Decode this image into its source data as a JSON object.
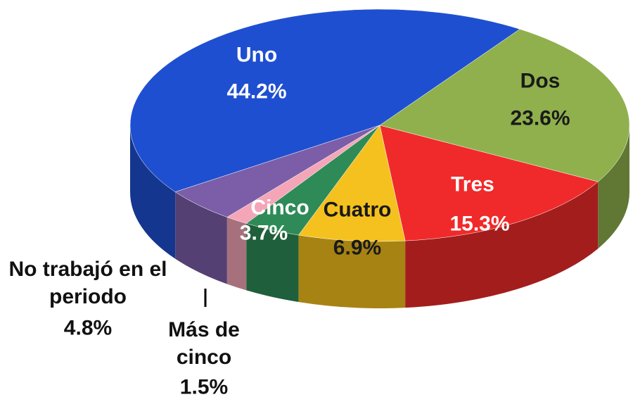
{
  "chart_data": {
    "type": "pie",
    "categories": [
      "Uno",
      "Dos",
      "Tres",
      "Cuatro",
      "Cinco",
      "Más de cinco",
      "No trabajó en el periodo"
    ],
    "values": [
      44.2,
      23.6,
      15.3,
      6.9,
      3.7,
      1.5,
      4.8
    ],
    "value_labels": [
      "44.2%",
      "23.6%",
      "15.3%",
      "6.9%",
      "3.7%",
      "1.5%",
      "4.8%"
    ],
    "colors": [
      "#1f4fd1",
      "#8fb04c",
      "#f02a2a",
      "#f5c11e",
      "#2e8b57",
      "#f4a6b8",
      "#7b5ea7"
    ]
  }
}
